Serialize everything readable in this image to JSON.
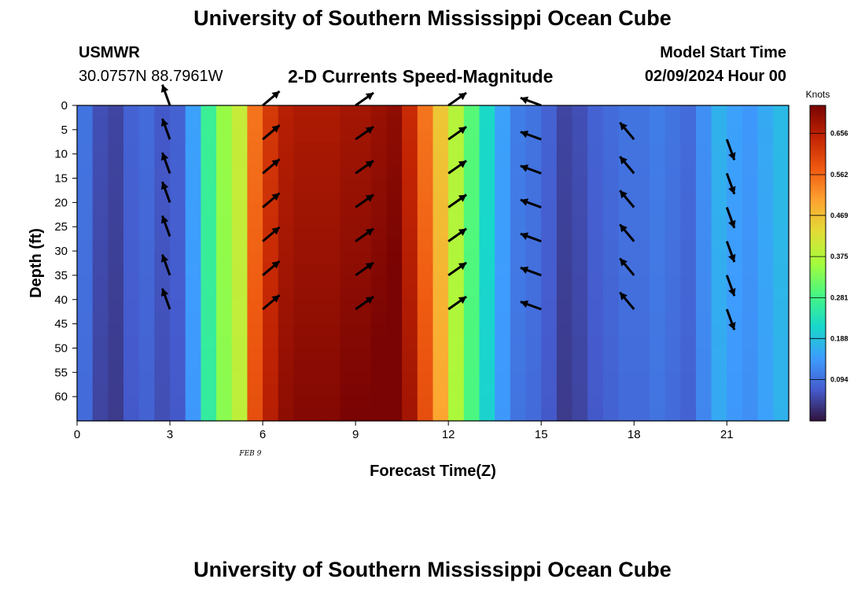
{
  "header": {
    "title": "University of Southern Mississippi Ocean Cube",
    "station": "USMWR",
    "coordinates": "30.0757N  88.7961W",
    "subtitle": "2-D Currents Speed-Magnitude",
    "model_start_label": "Model Start Time",
    "model_start_value": "02/09/2024 Hour 00"
  },
  "footer": {
    "title": "University of Southern Mississippi Ocean Cube"
  },
  "chart_data": {
    "type": "heatmap",
    "title": "2-D Currents Speed-Magnitude",
    "xlabel": "Forecast Time(Z)",
    "ylabel": "Depth (ft)",
    "x_annotation": "FEB 9",
    "xlim": [
      0,
      23
    ],
    "ylim": [
      0,
      65
    ],
    "y_inverted": true,
    "x_ticks": [
      0,
      3,
      6,
      9,
      12,
      15,
      18,
      21
    ],
    "y_ticks": [
      0,
      5,
      10,
      15,
      20,
      25,
      30,
      35,
      40,
      45,
      50,
      55,
      60
    ],
    "colorbar": {
      "label": "Knots",
      "ticks": [
        "0.094",
        "0.188",
        "0.281",
        "0.375",
        "0.469",
        "0.562",
        "0.656"
      ],
      "range": [
        0.0,
        0.72
      ],
      "colormap": "turbo"
    },
    "time_columns_hours": [
      0,
      0.5,
      1,
      1.5,
      2,
      2.5,
      3,
      3.5,
      4,
      4.5,
      5,
      5.5,
      6,
      6.5,
      7,
      7.5,
      8,
      8.5,
      9,
      9.5,
      10,
      10.5,
      11,
      11.5,
      12,
      12.5,
      13,
      13.5,
      14,
      14.5,
      15,
      15.5,
      16,
      16.5,
      17,
      17.5,
      18,
      18.5,
      19,
      19.5,
      20,
      20.5,
      21,
      21.5,
      22,
      22.5
    ],
    "column_speed_knots": [
      0.1,
      0.06,
      0.05,
      0.08,
      0.09,
      0.07,
      0.08,
      0.15,
      0.27,
      0.35,
      0.4,
      0.55,
      0.62,
      0.66,
      0.67,
      0.67,
      0.67,
      0.68,
      0.68,
      0.69,
      0.7,
      0.64,
      0.55,
      0.46,
      0.38,
      0.3,
      0.22,
      0.15,
      0.11,
      0.1,
      0.08,
      0.05,
      0.06,
      0.08,
      0.09,
      0.1,
      0.1,
      0.11,
      0.1,
      0.09,
      0.13,
      0.17,
      0.15,
      0.14,
      0.16,
      0.18
    ],
    "vectors": [
      {
        "time": 3,
        "dir_deg": 200,
        "depths": [
          0,
          7,
          14,
          20,
          27,
          35,
          42
        ]
      },
      {
        "time": 6,
        "dir_deg": 130,
        "depths": [
          0,
          7,
          14,
          21,
          28,
          35,
          42
        ]
      },
      {
        "time": 9,
        "dir_deg": 125,
        "depths": [
          0,
          7,
          14,
          21,
          28,
          35,
          42
        ]
      },
      {
        "time": 12,
        "dir_deg": 125,
        "depths": [
          0,
          7,
          14,
          21,
          28,
          35,
          42
        ]
      },
      {
        "time": 15,
        "dir_deg": 250,
        "depths": [
          0,
          7,
          14,
          21,
          28,
          35,
          42
        ]
      },
      {
        "time": 18,
        "dir_deg": 220,
        "depths": [
          7,
          14,
          21,
          28,
          35,
          42
        ]
      },
      {
        "time": 21,
        "dir_deg": 20,
        "depths": [
          7,
          14,
          21,
          28,
          35,
          42
        ]
      }
    ]
  }
}
